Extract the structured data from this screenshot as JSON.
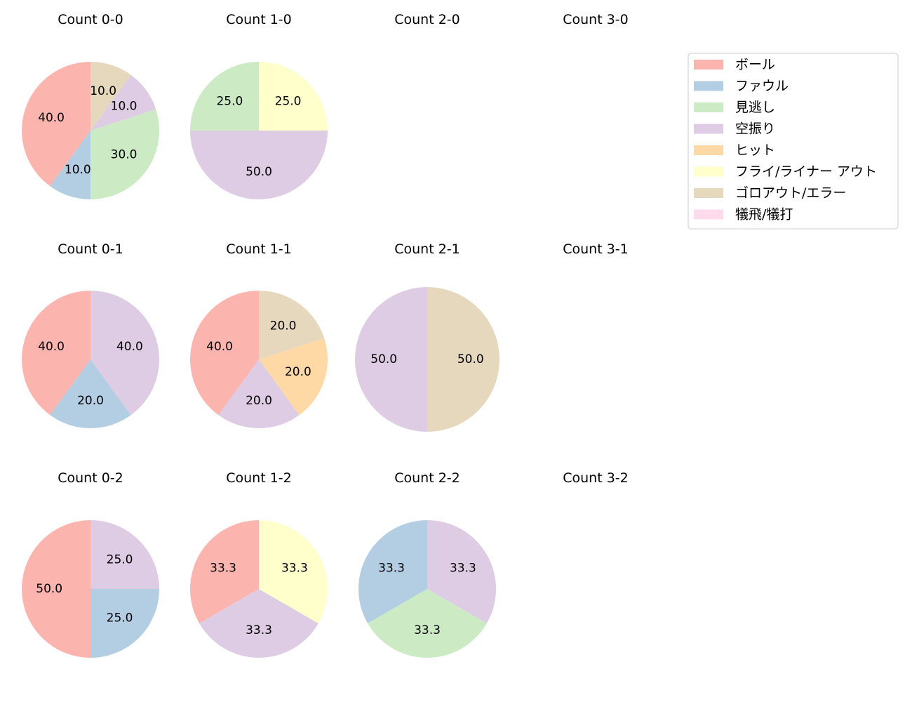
{
  "colors": {
    "ボール": "#fbb4ae",
    "ファウル": "#b3cde3",
    "見逃し": "#ccebc5",
    "空振り": "#decbe4",
    "ヒット": "#fed9a6",
    "フライ/ライナー アウト": "#ffffcc",
    "ゴロアウト/エラー": "#e5d8bd",
    "犠飛/犠打": "#fddaec"
  },
  "chart_data": {
    "type": "pie",
    "legend": {
      "position": "top-right",
      "entries": [
        "ボール",
        "ファウル",
        "見逃し",
        "空振り",
        "ヒット",
        "フライ/ライナー アウト",
        "ゴロアウト/エラー",
        "犠飛/犠打"
      ]
    },
    "charts": [
      {
        "title": "Count 0-0",
        "slices": [
          {
            "category": "ボール",
            "value": 40.0,
            "label": "40.0"
          },
          {
            "category": "ファウル",
            "value": 10.0,
            "label": "10.0"
          },
          {
            "category": "見逃し",
            "value": 30.0,
            "label": "30.0"
          },
          {
            "category": "空振り",
            "value": 10.0,
            "label": "10.0"
          },
          {
            "category": "ゴロアウト/エラー",
            "value": 10.0,
            "label": "10.0"
          }
        ]
      },
      {
        "title": "Count 1-0",
        "slices": [
          {
            "category": "見逃し",
            "value": 25.0,
            "label": "25.0"
          },
          {
            "category": "空振り",
            "value": 50.0,
            "label": "50.0"
          },
          {
            "category": "フライ/ライナー アウト",
            "value": 25.0,
            "label": "25.0"
          }
        ]
      },
      {
        "title": "Count 2-0",
        "slices": []
      },
      {
        "title": "Count 3-0",
        "slices": []
      },
      {
        "title": "Count 0-1",
        "slices": [
          {
            "category": "ボール",
            "value": 40.0,
            "label": "40.0"
          },
          {
            "category": "ファウル",
            "value": 20.0,
            "label": "20.0"
          },
          {
            "category": "空振り",
            "value": 40.0,
            "label": "40.0"
          }
        ]
      },
      {
        "title": "Count 1-1",
        "slices": [
          {
            "category": "ボール",
            "value": 40.0,
            "label": "40.0"
          },
          {
            "category": "空振り",
            "value": 20.0,
            "label": "20.0"
          },
          {
            "category": "ヒット",
            "value": 20.0,
            "label": "20.0"
          },
          {
            "category": "ゴロアウト/エラー",
            "value": 20.0,
            "label": "20.0"
          }
        ]
      },
      {
        "title": "Count 2-1",
        "slices": [
          {
            "category": "空振り",
            "value": 50.0,
            "label": "50.0"
          },
          {
            "category": "ゴロアウト/エラー",
            "value": 50.0,
            "label": "50.0"
          }
        ]
      },
      {
        "title": "Count 3-1",
        "slices": []
      },
      {
        "title": "Count 0-2",
        "slices": [
          {
            "category": "ボール",
            "value": 50.0,
            "label": "50.0"
          },
          {
            "category": "ファウル",
            "value": 25.0,
            "label": "25.0"
          },
          {
            "category": "空振り",
            "value": 25.0,
            "label": "25.0"
          }
        ]
      },
      {
        "title": "Count 1-2",
        "slices": [
          {
            "category": "ボール",
            "value": 33.3,
            "label": "33.3"
          },
          {
            "category": "空振り",
            "value": 33.3,
            "label": "33.3"
          },
          {
            "category": "フライ/ライナー アウト",
            "value": 33.3,
            "label": "33.3"
          }
        ]
      },
      {
        "title": "Count 2-2",
        "slices": [
          {
            "category": "ファウル",
            "value": 33.3,
            "label": "33.3"
          },
          {
            "category": "見逃し",
            "value": 33.3,
            "label": "33.3"
          },
          {
            "category": "空振り",
            "value": 33.3,
            "label": "33.3"
          }
        ]
      },
      {
        "title": "Count 3-2",
        "slices": []
      }
    ]
  }
}
